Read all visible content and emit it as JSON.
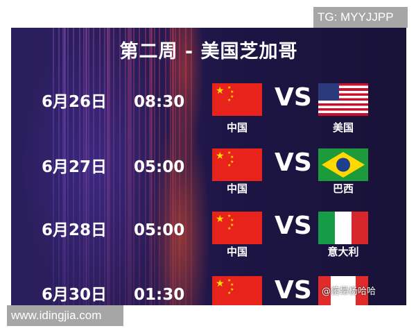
{
  "title": "第二周 - 美国芝加哥",
  "top_tag": "TG: MYYJJPP",
  "bottom_tag": "www.idingjia.com",
  "watermark": "@俯昂杨哈哈",
  "vs": "VS",
  "matches": [
    {
      "date": "6月26日",
      "time": "08:30",
      "home": "中国",
      "away": "美国",
      "away_flag": "usa-flag"
    },
    {
      "date": "6月27日",
      "time": "05:00",
      "home": "中国",
      "away": "巴西",
      "away_flag": "brazil-flag"
    },
    {
      "date": "6月28日",
      "time": "05:00",
      "home": "中国",
      "away": "意大利",
      "away_flag": "italy-flag"
    },
    {
      "date": "6月30日",
      "time": "01:30",
      "home": "中国",
      "away": "",
      "away_flag": "canada-flag"
    }
  ]
}
